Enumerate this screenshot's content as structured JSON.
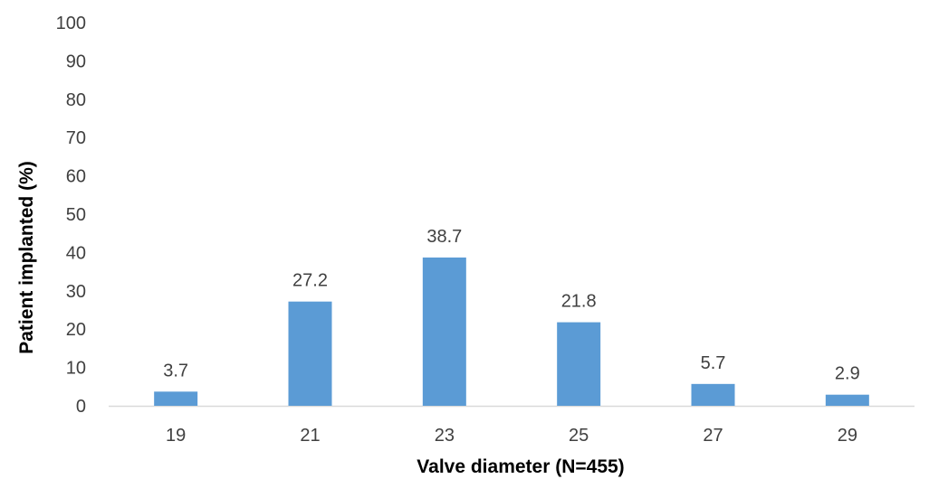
{
  "chart_data": {
    "type": "bar",
    "title": "",
    "xlabel": "Valve diameter (N=455)",
    "ylabel": "Patient implanted (%)",
    "categories": [
      "19",
      "21",
      "23",
      "25",
      "27",
      "29"
    ],
    "values": [
      3.7,
      27.2,
      38.7,
      21.8,
      5.7,
      2.9
    ],
    "data_labels": [
      "3.7",
      "27.2",
      "38.7",
      "21.8",
      "5.7",
      "2.9"
    ],
    "ylim": [
      0,
      100
    ],
    "yticks": [
      "0",
      "10",
      "20",
      "30",
      "40",
      "50",
      "60",
      "70",
      "80",
      "90",
      "100"
    ],
    "grid": false,
    "legend": "none",
    "bar_color": "#5B9BD5",
    "axis_color": "#D9D9D9"
  }
}
